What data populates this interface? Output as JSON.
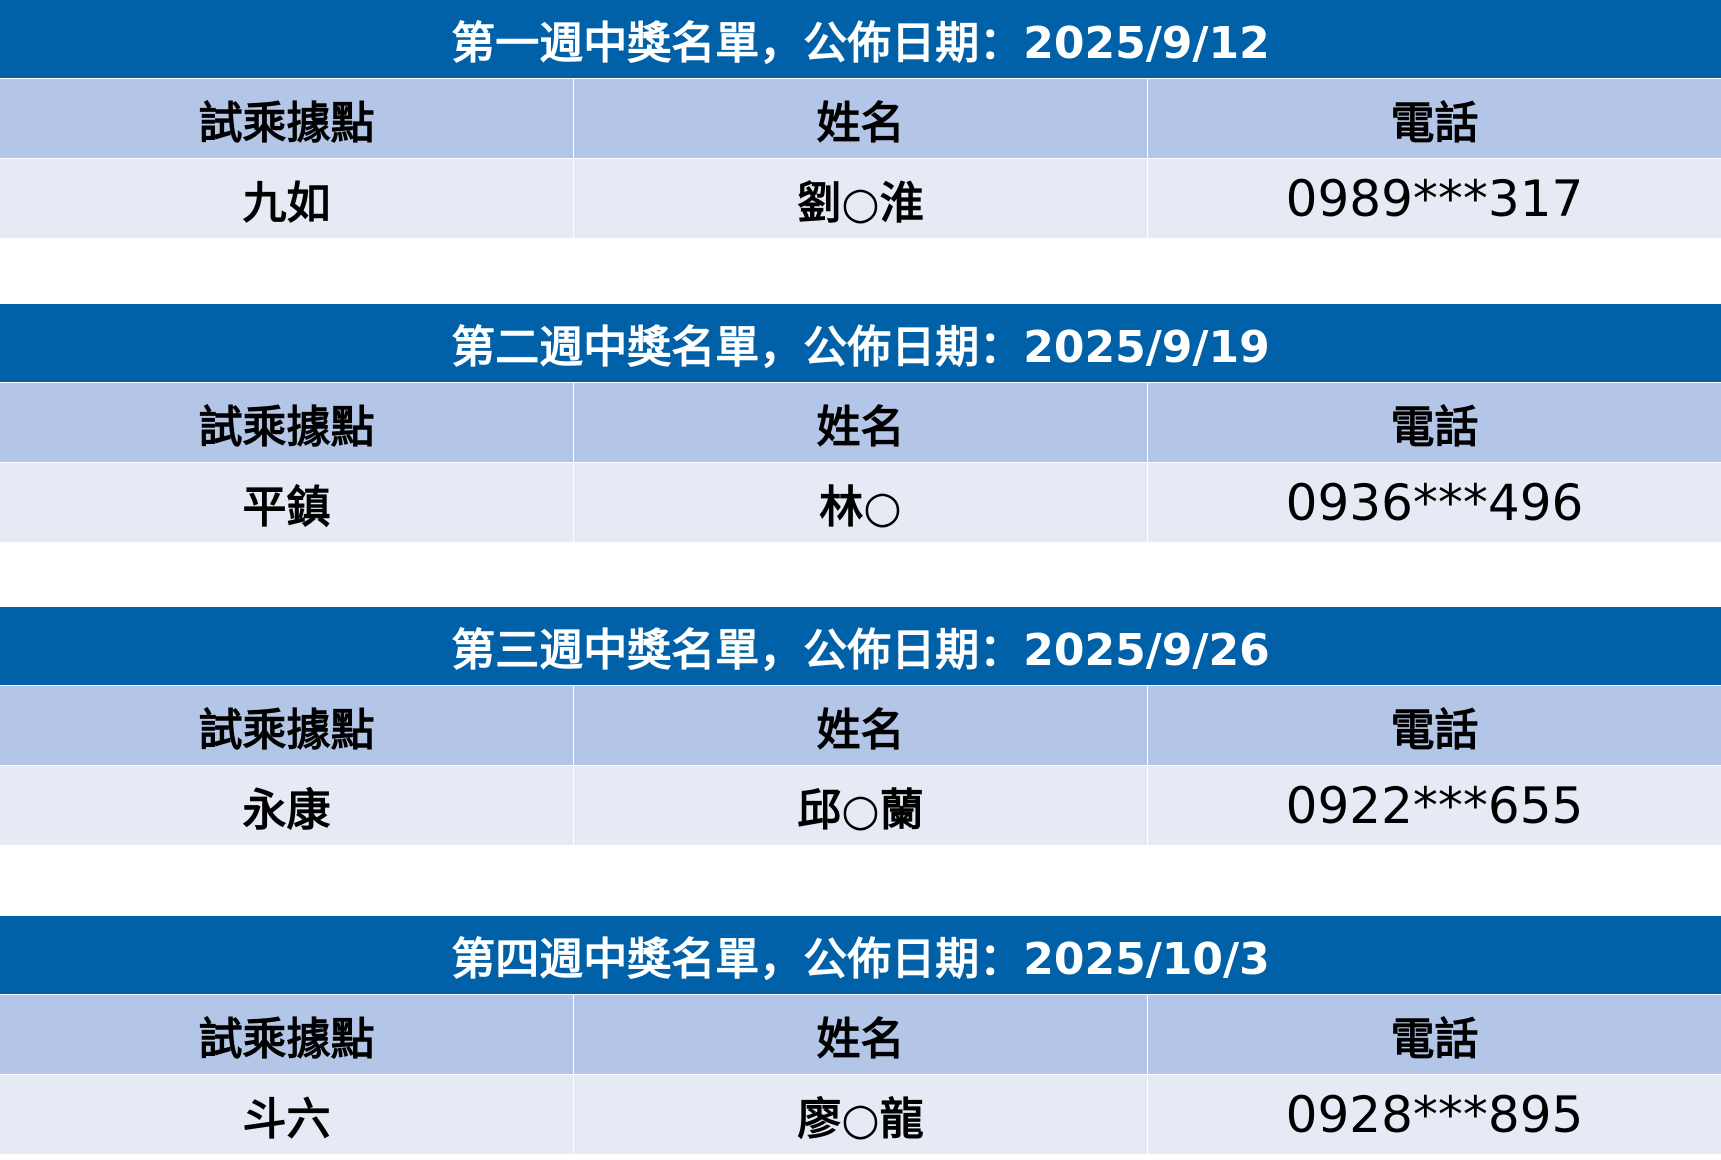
{
  "columns": [
    "試乘據點",
    "姓名",
    "電話"
  ],
  "weeks": [
    {
      "title": "第一週中獎名單，公佈日期：2025/9/12",
      "location": "九如",
      "name": "劉○淮",
      "phone": "0989***317"
    },
    {
      "title": "第二週中獎名單，公佈日期：2025/9/19",
      "location": "平鎮",
      "name": "林○",
      "phone": "0936***496"
    },
    {
      "title": "第三週中獎名單，公佈日期：2025/9/26",
      "location": "永康",
      "name": "邱○蘭",
      "phone": "0922***655"
    },
    {
      "title": "第四週中獎名單，公佈日期：2025/10/3",
      "location": "斗六",
      "name": "廖○龍",
      "phone": "0928***895"
    }
  ],
  "colors": {
    "title_bg": "#0061A8",
    "header_bg": "#B4C6E7",
    "row_bg": "#E5EAF4"
  }
}
